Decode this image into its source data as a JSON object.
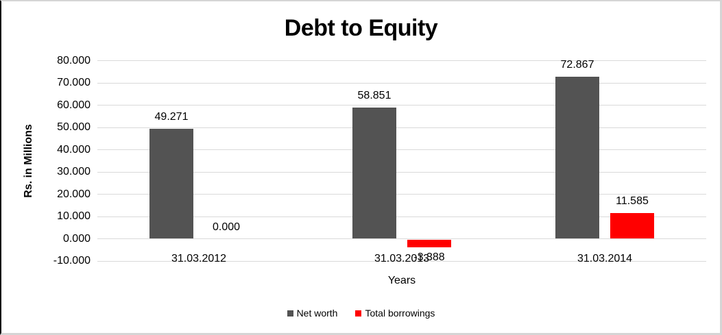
{
  "chart_data": {
    "type": "bar",
    "title": "Debt to Equity",
    "xlabel": "Years",
    "ylabel": "Rs. in Millions",
    "categories": [
      "31.03.2012",
      "31.03.2013",
      "31.03.2014"
    ],
    "series": [
      {
        "name": "Net worth",
        "color": "#535353",
        "values": [
          49.271,
          58.851,
          72.867
        ],
        "labels": [
          "49.271",
          "58.851",
          "72.867"
        ]
      },
      {
        "name": "Total borrowings",
        "color": "#ff0000",
        "values": [
          0.0,
          -3.388,
          11.585
        ],
        "labels": [
          "0.000",
          "-3.388",
          "11.585"
        ]
      }
    ],
    "ylim": [
      -10,
      80
    ],
    "ytick_step": 10,
    "ytick_labels": [
      "80.000",
      "70.000",
      "60.000",
      "50.000",
      "40.000",
      "30.000",
      "20.000",
      "10.000",
      "0.000",
      "-10.000"
    ],
    "grid": true,
    "legend_position": "bottom",
    "colors": {
      "gridline": "#d9d9d9",
      "text": "#000000"
    }
  }
}
